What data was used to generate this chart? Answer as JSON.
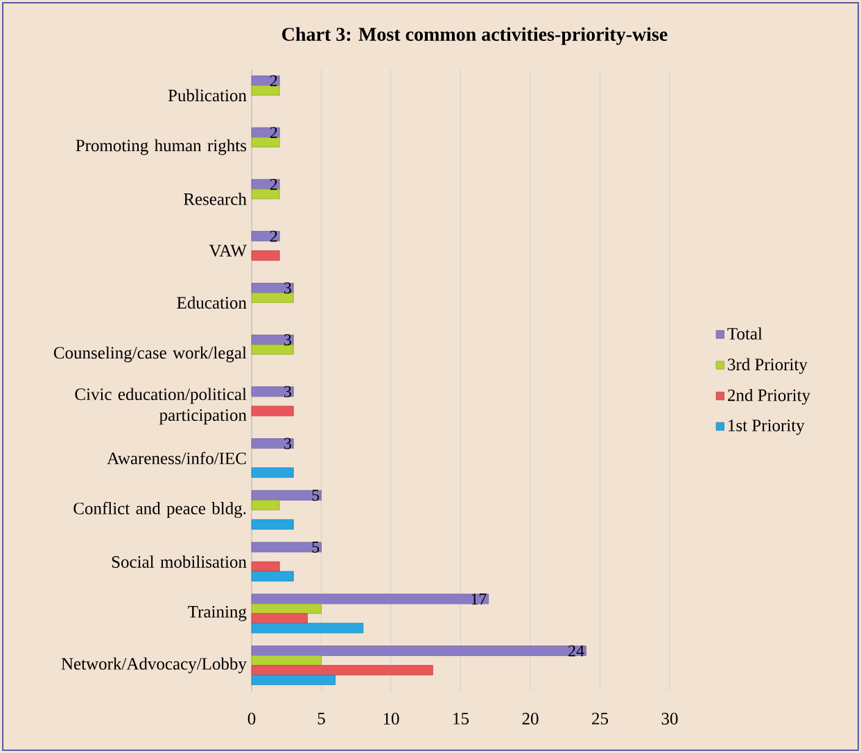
{
  "chart_data": {
    "type": "bar",
    "orientation": "horizontal",
    "title": "Chart 3: Most common activities-priority-wise",
    "categories": [
      "Publication",
      "Promoting human rights",
      "Research",
      "VAW",
      "Education",
      "Counseling/case work/legal",
      "Civic education/political participation",
      "Awareness/info/IEC",
      "Conflict and peace bldg.",
      "Social mobilisation",
      "Training",
      "Network/Advocacy/Lobby"
    ],
    "series": [
      {
        "name": "Total",
        "color": "#8a7cc4",
        "values": [
          2,
          2,
          2,
          2,
          3,
          3,
          3,
          3,
          5,
          5,
          17,
          24
        ],
        "value_labels": [
          "2",
          "2",
          "2",
          "2",
          "3",
          "3",
          "3",
          "3",
          "5",
          "5",
          "17",
          "24"
        ]
      },
      {
        "name": "3rd Priority",
        "color": "#b5d334",
        "values": [
          2,
          2,
          2,
          null,
          3,
          3,
          null,
          null,
          2,
          null,
          5,
          5
        ]
      },
      {
        "name": "2nd Priority",
        "color": "#e8575a",
        "values": [
          null,
          null,
          null,
          2,
          null,
          null,
          3,
          null,
          null,
          2,
          4,
          13
        ]
      },
      {
        "name": "1st Priority",
        "color": "#29a5e0",
        "values": [
          null,
          null,
          null,
          null,
          null,
          null,
          null,
          3,
          3,
          3,
          8,
          6
        ]
      }
    ],
    "xlim": [
      0,
      30
    ],
    "xticks": [
      0,
      5,
      10,
      15,
      20,
      25,
      30
    ],
    "grid": "x",
    "legend": "right"
  }
}
